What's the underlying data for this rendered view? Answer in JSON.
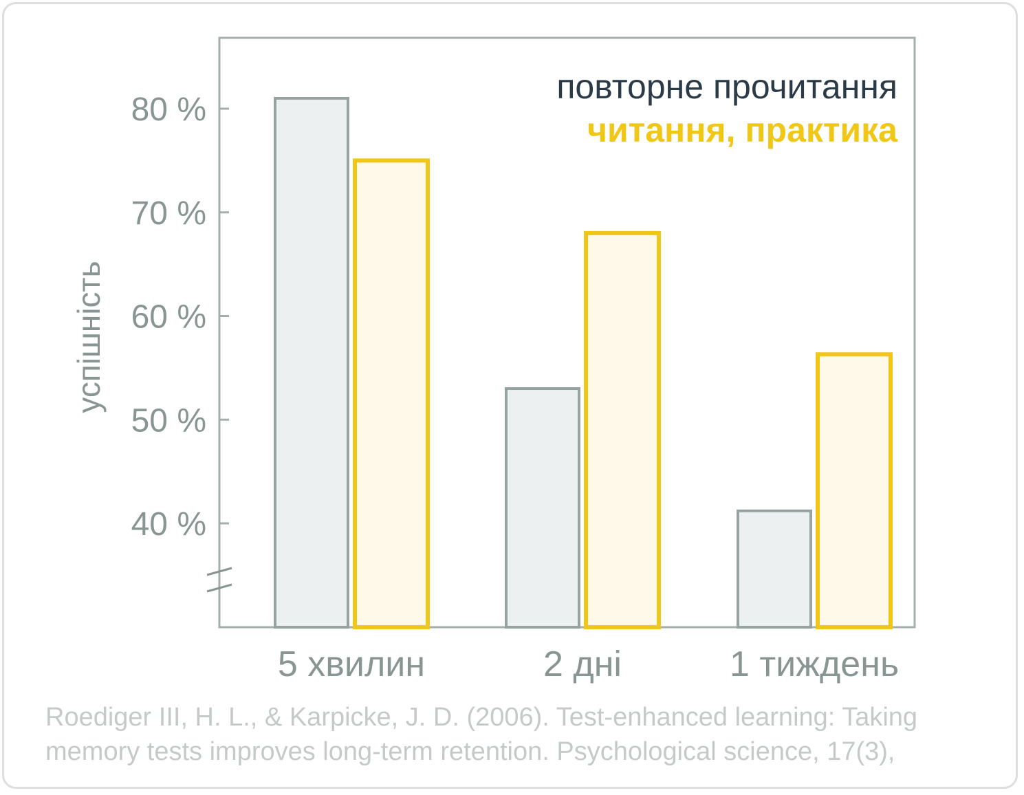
{
  "chart_data": {
    "type": "bar",
    "categories": [
      "5 хвилин",
      "2 дні",
      "1 тиждень"
    ],
    "series": [
      {
        "name": "повторне прочитання",
        "values": [
          81,
          53,
          41.2
        ],
        "stroke": "#97a3a1",
        "fill": "#edf0f0"
      },
      {
        "name": "читання, практика",
        "values": [
          75,
          68,
          56.3
        ],
        "stroke": "#f0c617",
        "fill": "#fef9e9"
      }
    ],
    "ylabel": "успішність",
    "yticks": [
      40,
      50,
      60,
      70,
      80
    ],
    "ytick_labels": [
      "40 %",
      "50 %",
      "60 %",
      "70 %",
      "80 %"
    ],
    "ylim": [
      30,
      87
    ],
    "axis_break": true,
    "legend_position": "top-right",
    "legend_colors": [
      "#2b3a47",
      "#f0c617"
    ]
  },
  "citation": {
    "line1": "Roediger III, H. L., & Karpicke, J. D. (2006). Test-enhanced learning: Taking",
    "line2": "memory tests improves long-term retention. Psychological science, 17(3),"
  }
}
